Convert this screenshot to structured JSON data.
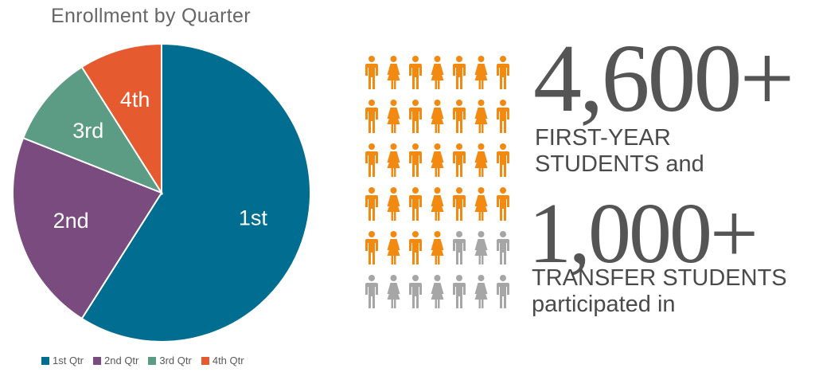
{
  "chart_data": {
    "type": "pie",
    "title": "Enrollment by Quarter",
    "categories": [
      "1st Qtr",
      "2nd Qtr",
      "3rd Qtr",
      "4th Qtr"
    ],
    "values": [
      59,
      22,
      10,
      9
    ],
    "slice_labels": [
      "1st",
      "2nd",
      "3rd",
      "4th"
    ],
    "colors": [
      "#006D91",
      "#794B7E",
      "#5C9B84",
      "#E55A2F"
    ],
    "legend_position": "bottom"
  },
  "infographic": {
    "first_year": {
      "number": "4,600+",
      "caption_line1": "FIRST-YEAR",
      "caption_line2": "STUDENTS and"
    },
    "transfer": {
      "number": "1,000+",
      "caption_line1": "TRANSFER STUDENTS",
      "caption_line2": "participated in"
    },
    "people_grid": {
      "columns": 7,
      "rows": 6,
      "highlighted_count": 32,
      "highlight_color": "#F28A12",
      "muted_color": "#A6A6A6",
      "icons": [
        "male-icon",
        "female-icon"
      ]
    }
  }
}
